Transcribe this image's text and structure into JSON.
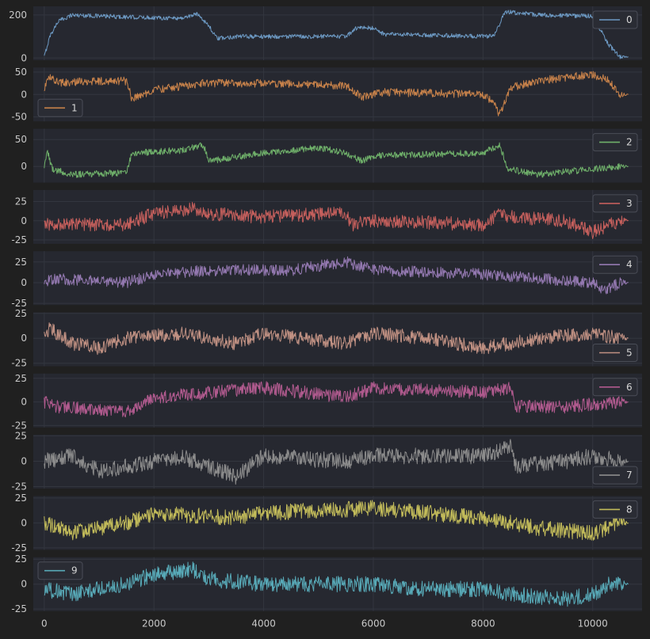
{
  "chart_data": {
    "type": "line",
    "layout": "stacked-subplots",
    "shared_x": true,
    "xlim": [
      -200,
      10900
    ],
    "xticks": [
      0,
      2000,
      4000,
      6000,
      8000,
      10000
    ],
    "grid": true,
    "note": "Each series below is an approximate envelope (breakpoints) of the visible trace; the fine-grained noise is not readable from the image and is synthesized for display.",
    "series": [
      {
        "name": "0",
        "color": "#6d9ac4",
        "ylim": [
          -10,
          240
        ],
        "yticks": [
          0,
          200
        ],
        "noise": 10,
        "legend": "upper right",
        "breakpoints": [
          [
            0,
            5
          ],
          [
            100,
            100
          ],
          [
            250,
            170
          ],
          [
            500,
            200
          ],
          [
            1500,
            190
          ],
          [
            2500,
            185
          ],
          [
            2800,
            205
          ],
          [
            3000,
            150
          ],
          [
            3150,
            90
          ],
          [
            3500,
            100
          ],
          [
            5500,
            100
          ],
          [
            5700,
            140
          ],
          [
            6000,
            140
          ],
          [
            6200,
            110
          ],
          [
            8200,
            100
          ],
          [
            8400,
            215
          ],
          [
            9000,
            200
          ],
          [
            10000,
            195
          ],
          [
            10300,
            60
          ],
          [
            10500,
            5
          ],
          [
            10650,
            5
          ]
        ]
      },
      {
        "name": "1",
        "color": "#c8824a",
        "ylim": [
          -60,
          60
        ],
        "yticks": [
          50,
          0,
          -50
        ],
        "noise": 9,
        "legend": "lower left",
        "breakpoints": [
          [
            0,
            0
          ],
          [
            50,
            40
          ],
          [
            300,
            25
          ],
          [
            800,
            30
          ],
          [
            1500,
            30
          ],
          [
            1600,
            -10
          ],
          [
            2000,
            10
          ],
          [
            2900,
            25
          ],
          [
            4000,
            25
          ],
          [
            5500,
            20
          ],
          [
            5800,
            -5
          ],
          [
            6200,
            5
          ],
          [
            8000,
            0
          ],
          [
            8200,
            -20
          ],
          [
            8300,
            -45
          ],
          [
            8500,
            15
          ],
          [
            9000,
            30
          ],
          [
            10000,
            45
          ],
          [
            10300,
            30
          ],
          [
            10500,
            0
          ],
          [
            10650,
            0
          ]
        ]
      },
      {
        "name": "2",
        "color": "#6fb06a",
        "ylim": [
          -30,
          70
        ],
        "yticks": [
          50,
          0
        ],
        "noise": 6,
        "legend": "upper right",
        "breakpoints": [
          [
            0,
            0
          ],
          [
            50,
            30
          ],
          [
            150,
            -5
          ],
          [
            500,
            -15
          ],
          [
            1500,
            -12
          ],
          [
            1600,
            25
          ],
          [
            2500,
            30
          ],
          [
            2900,
            40
          ],
          [
            3000,
            10
          ],
          [
            4000,
            25
          ],
          [
            5000,
            35
          ],
          [
            5500,
            25
          ],
          [
            5800,
            10
          ],
          [
            6000,
            20
          ],
          [
            8000,
            25
          ],
          [
            8300,
            40
          ],
          [
            8450,
            -5
          ],
          [
            9000,
            -15
          ],
          [
            10000,
            -5
          ],
          [
            10500,
            0
          ],
          [
            10650,
            0
          ]
        ]
      },
      {
        "name": "3",
        "color": "#c45f5c",
        "ylim": [
          -30,
          40
        ],
        "yticks": [
          25,
          0,
          -25
        ],
        "noise": 9,
        "legend": "upper right",
        "breakpoints": [
          [
            0,
            0
          ],
          [
            100,
            -5
          ],
          [
            1500,
            -5
          ],
          [
            2000,
            10
          ],
          [
            2700,
            15
          ],
          [
            2900,
            10
          ],
          [
            4000,
            5
          ],
          [
            5500,
            10
          ],
          [
            5600,
            -5
          ],
          [
            6000,
            0
          ],
          [
            8000,
            -5
          ],
          [
            8300,
            10
          ],
          [
            8500,
            5
          ],
          [
            9500,
            0
          ],
          [
            10000,
            -15
          ],
          [
            10500,
            0
          ],
          [
            10650,
            0
          ]
        ]
      },
      {
        "name": "4",
        "color": "#9378b0",
        "ylim": [
          -27,
          38
        ],
        "yticks": [
          25,
          0,
          -25
        ],
        "noise": 7,
        "legend": "upper right",
        "breakpoints": [
          [
            0,
            0
          ],
          [
            100,
            5
          ],
          [
            1500,
            0
          ],
          [
            2000,
            10
          ],
          [
            3000,
            15
          ],
          [
            4500,
            15
          ],
          [
            5500,
            25
          ],
          [
            6000,
            15
          ],
          [
            8000,
            10
          ],
          [
            9000,
            5
          ],
          [
            10000,
            0
          ],
          [
            10200,
            -10
          ],
          [
            10500,
            0
          ],
          [
            10650,
            0
          ]
        ]
      },
      {
        "name": "5",
        "color": "#bf9082",
        "ylim": [
          -28,
          26
        ],
        "yticks": [
          25,
          0,
          -25
        ],
        "noise": 7,
        "legend": "lower right",
        "breakpoints": [
          [
            0,
            0
          ],
          [
            100,
            10
          ],
          [
            500,
            -5
          ],
          [
            1000,
            -10
          ],
          [
            1500,
            0
          ],
          [
            2500,
            5
          ],
          [
            3500,
            -5
          ],
          [
            4000,
            5
          ],
          [
            5500,
            -5
          ],
          [
            6000,
            5
          ],
          [
            7000,
            0
          ],
          [
            8000,
            -10
          ],
          [
            9000,
            0
          ],
          [
            10000,
            5
          ],
          [
            10500,
            0
          ],
          [
            10650,
            0
          ]
        ]
      },
      {
        "name": "6",
        "color": "#b05a8e",
        "ylim": [
          -27,
          30
        ],
        "yticks": [
          25,
          0,
          -25
        ],
        "noise": 7,
        "legend": "upper right",
        "breakpoints": [
          [
            0,
            0
          ],
          [
            200,
            -5
          ],
          [
            1500,
            -10
          ],
          [
            2000,
            5
          ],
          [
            3000,
            10
          ],
          [
            4000,
            15
          ],
          [
            5500,
            5
          ],
          [
            6000,
            15
          ],
          [
            8000,
            10
          ],
          [
            8500,
            15
          ],
          [
            8600,
            -5
          ],
          [
            9500,
            -5
          ],
          [
            10500,
            0
          ],
          [
            10650,
            0
          ]
        ]
      },
      {
        "name": "7",
        "color": "#8c8c8c",
        "ylim": [
          -27,
          26
        ],
        "yticks": [
          25,
          0,
          -25
        ],
        "noise": 8,
        "legend": "lower right",
        "breakpoints": [
          [
            0,
            0
          ],
          [
            500,
            5
          ],
          [
            1000,
            -10
          ],
          [
            1500,
            -5
          ],
          [
            2500,
            5
          ],
          [
            3500,
            -15
          ],
          [
            4000,
            5
          ],
          [
            5500,
            0
          ],
          [
            6000,
            5
          ],
          [
            8000,
            5
          ],
          [
            8500,
            15
          ],
          [
            8600,
            -5
          ],
          [
            9500,
            0
          ],
          [
            10000,
            5
          ],
          [
            10500,
            0
          ],
          [
            10650,
            0
          ]
        ]
      },
      {
        "name": "8",
        "color": "#c2bb5a",
        "ylim": [
          -27,
          27
        ],
        "yticks": [
          25,
          0,
          -25
        ],
        "noise": 8,
        "legend": "upper right",
        "breakpoints": [
          [
            0,
            0
          ],
          [
            500,
            -10
          ],
          [
            1500,
            0
          ],
          [
            2000,
            10
          ],
          [
            3500,
            5
          ],
          [
            4000,
            10
          ],
          [
            6000,
            15
          ],
          [
            7000,
            10
          ],
          [
            8000,
            5
          ],
          [
            8500,
            0
          ],
          [
            9000,
            -5
          ],
          [
            10000,
            -10
          ],
          [
            10500,
            0
          ],
          [
            10650,
            0
          ]
        ]
      },
      {
        "name": "9",
        "color": "#58aab8",
        "ylim": [
          -27,
          27
        ],
        "yticks": [
          25,
          0,
          -25
        ],
        "noise": 8,
        "legend": "upper left",
        "breakpoints": [
          [
            0,
            -5
          ],
          [
            500,
            -10
          ],
          [
            1500,
            0
          ],
          [
            2000,
            10
          ],
          [
            2700,
            15
          ],
          [
            3000,
            5
          ],
          [
            4000,
            0
          ],
          [
            5000,
            0
          ],
          [
            6000,
            0
          ],
          [
            7000,
            -5
          ],
          [
            8000,
            -5
          ],
          [
            8500,
            -10
          ],
          [
            9500,
            -15
          ],
          [
            10000,
            -10
          ],
          [
            10300,
            0
          ],
          [
            10650,
            0
          ]
        ]
      }
    ]
  }
}
